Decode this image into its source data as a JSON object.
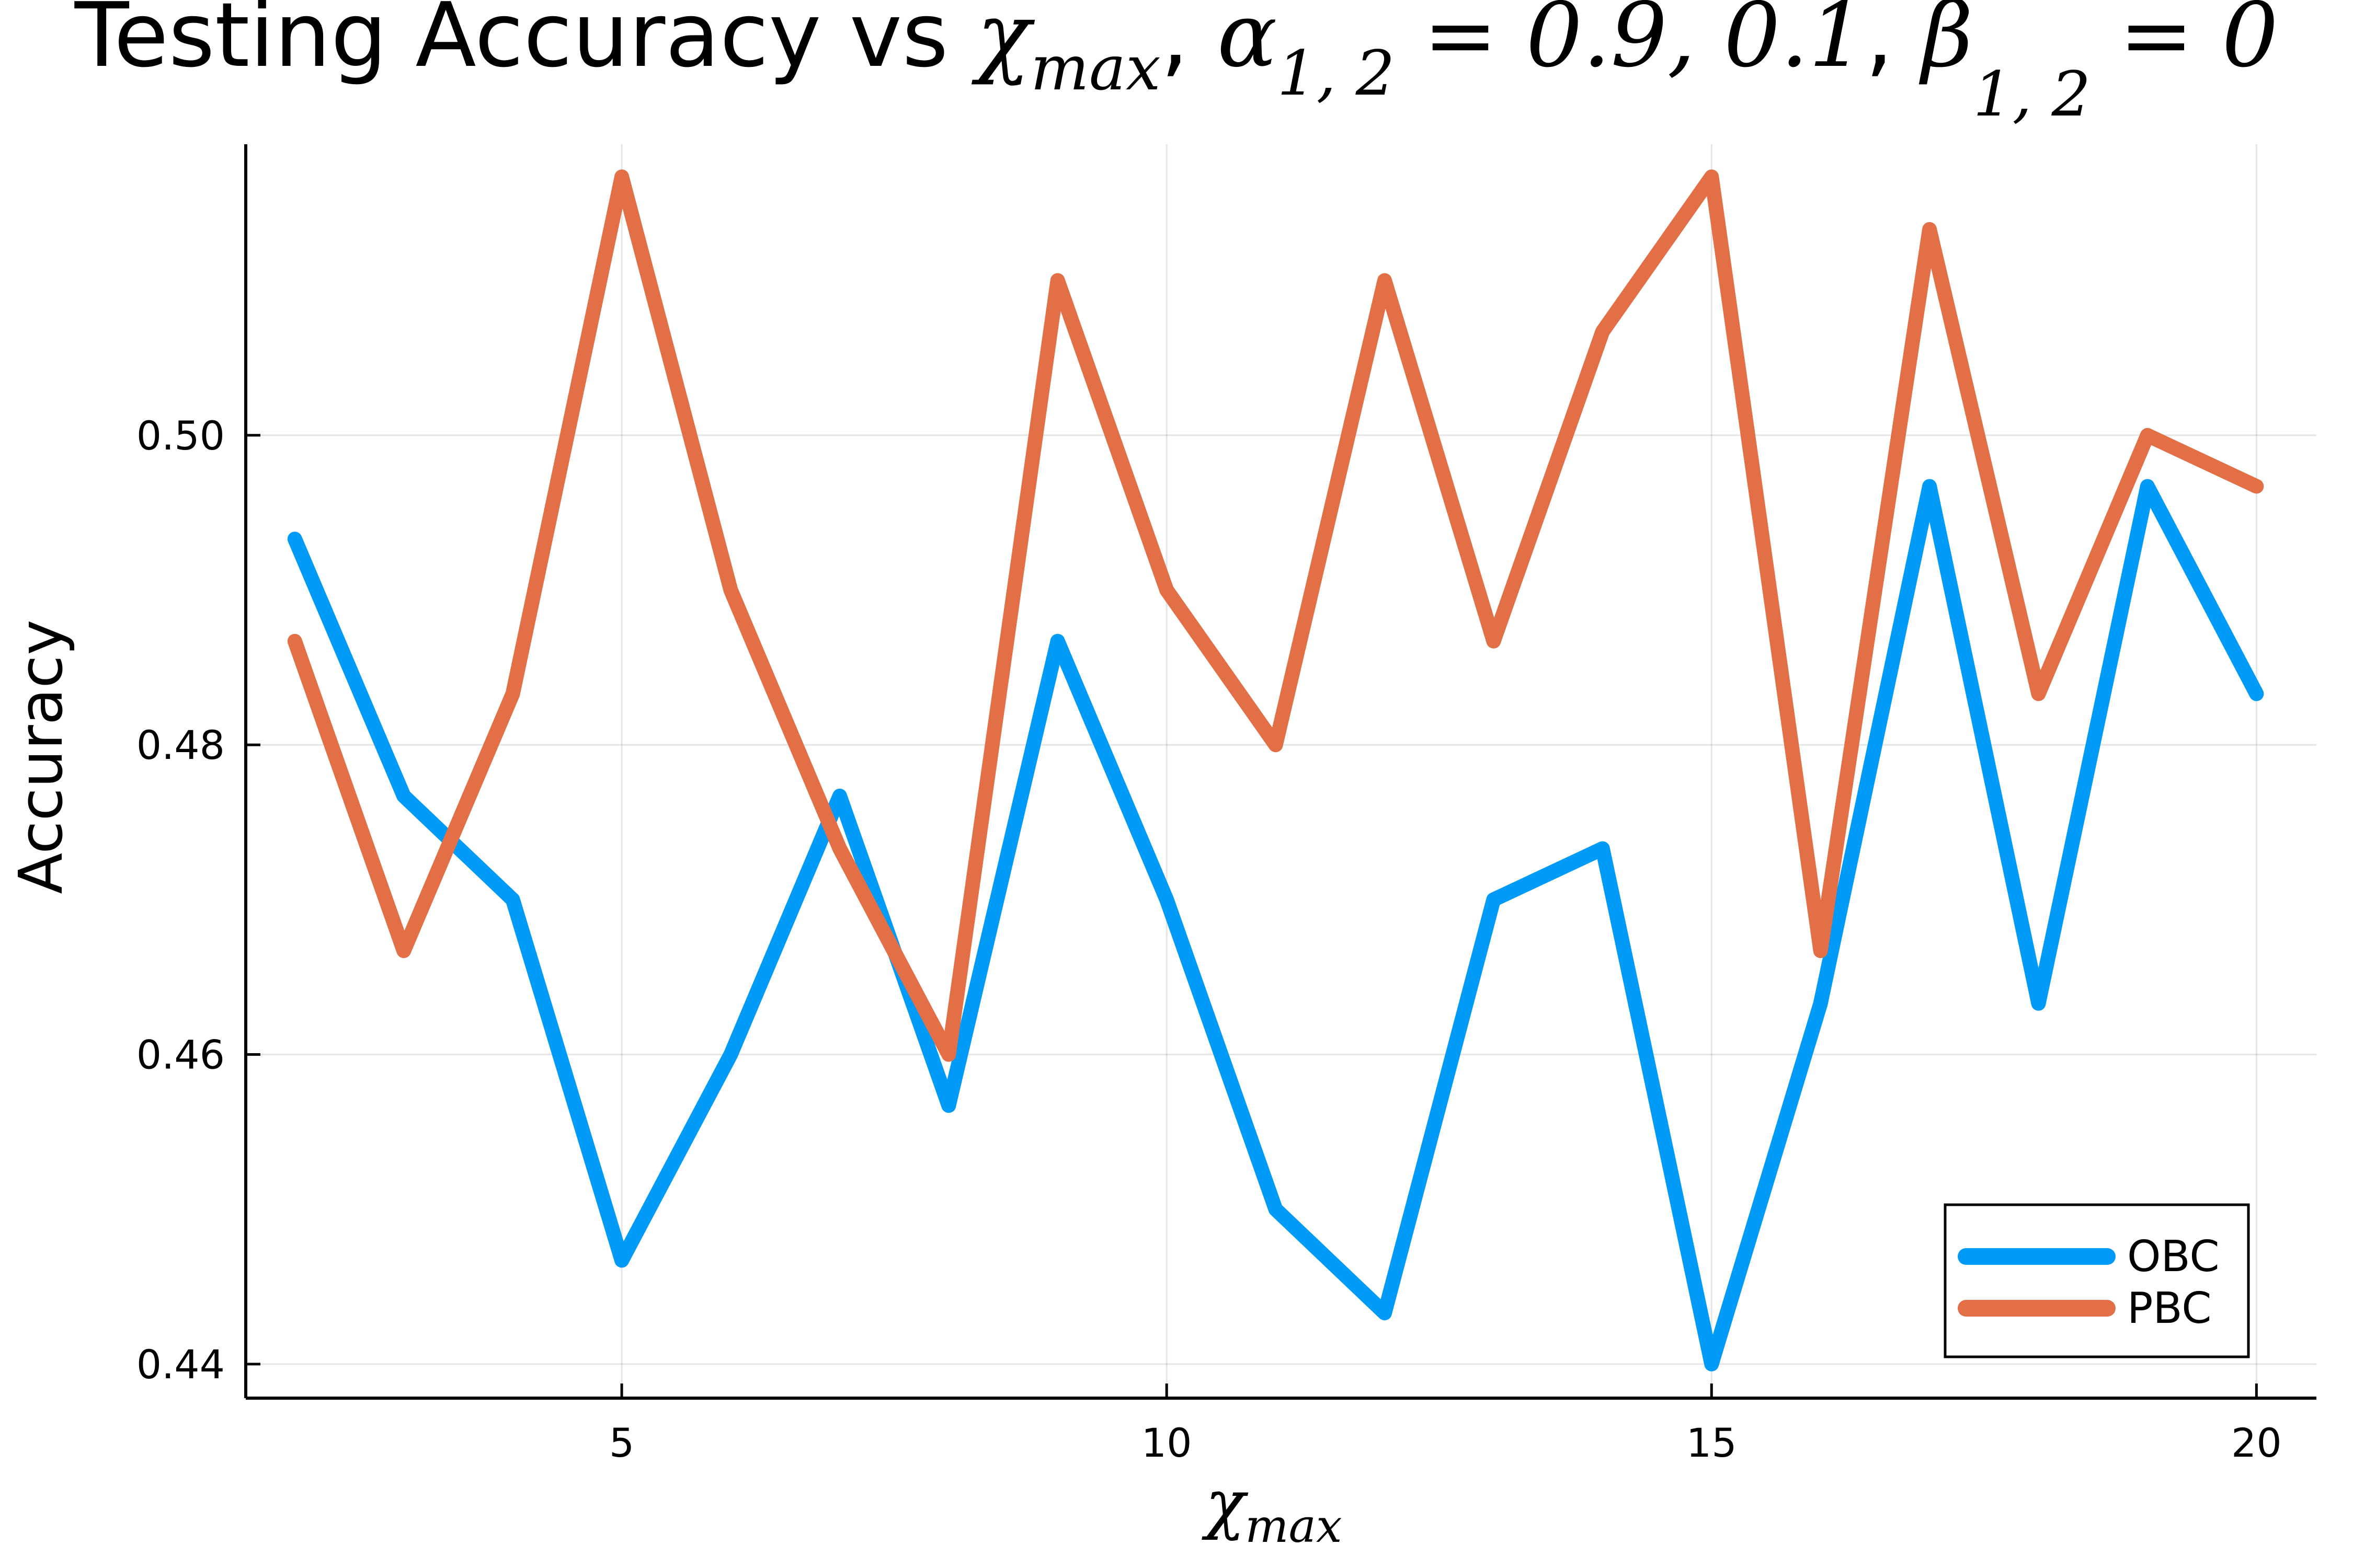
{
  "title": {
    "prefix": "Testing Accuracy vs ",
    "chi": "χ",
    "chi_sub": "max",
    "comma_space": ", ",
    "alpha": "α",
    "alpha_sub": "1, 2",
    "alpha_eq": " = 0.9, 0.1",
    "beta": "β",
    "beta_sub": "1, 2",
    "beta_eq": " = 0"
  },
  "chart_data": {
    "type": "line",
    "xlabel": "χ_max",
    "ylabel": "Accuracy",
    "x_ticks": [
      5,
      10,
      15,
      20
    ],
    "x_tick_labels": [
      "5",
      "10",
      "15",
      "20"
    ],
    "y_ticks": [
      0.44,
      0.46,
      0.48,
      0.5
    ],
    "y_tick_labels": [
      "0.44",
      "0.46",
      "0.48",
      "0.50"
    ],
    "xlim": [
      1.55,
      20.55
    ],
    "ylim": [
      0.4378,
      0.5188
    ],
    "grid": true,
    "legend_position": "bottom-right",
    "x": [
      2,
      3,
      4,
      5,
      6,
      7,
      8,
      9,
      10,
      11,
      12,
      13,
      14,
      15,
      16,
      17,
      18,
      19,
      20
    ],
    "series": [
      {
        "name": "OBC",
        "color": "#009AF9",
        "values": [
          0.4933,
          0.4767,
          0.47,
          0.4467,
          0.46,
          0.4767,
          0.4567,
          0.4867,
          0.47,
          0.45,
          0.4433,
          0.47,
          0.4733,
          0.44,
          0.4633,
          0.4967,
          0.4633,
          0.4967,
          0.4833
        ]
      },
      {
        "name": "PBC",
        "color": "#E26F46",
        "values": [
          0.4867,
          0.4667,
          0.4833,
          0.5167,
          0.49,
          0.4733,
          0.46,
          0.51,
          0.49,
          0.48,
          0.51,
          0.4867,
          0.5067,
          0.5167,
          0.4667,
          0.5133,
          0.4833,
          0.5,
          0.4967
        ]
      }
    ]
  }
}
